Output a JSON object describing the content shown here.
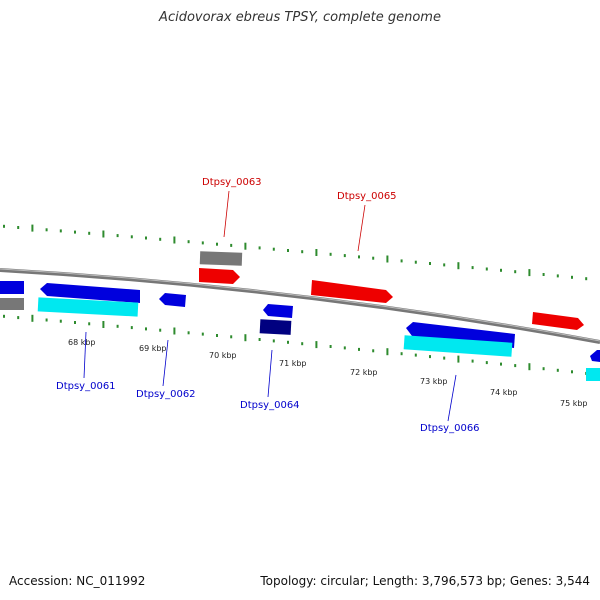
{
  "title": "Acidovorax ebreus TPSY, complete genome",
  "footer": {
    "accession": "Accession: NC_011992",
    "summary": "Topology: circular; Length: 3,796,573 bp; Genes: 3,544"
  },
  "colors": {
    "forward_gene": "#ee0000",
    "reverse_gene": "#0000ee",
    "reverse_cds": "#00e8f0",
    "gray_feature": "#777777",
    "dark_feature": "#000080",
    "backbone": "#888888",
    "ticks": "#2e8b2e",
    "forward_label": "#cc0000",
    "reverse_label": "#0000cc"
  },
  "kbp_labels": [
    "68 kbp",
    "69 kbp",
    "70 kbp",
    "71 kbp",
    "72 kbp",
    "73 kbp",
    "74 kbp",
    "75 kbp"
  ],
  "gene_labels": [
    "Dtpsy_0063",
    "Dtpsy_0065",
    "Dtpsy_0061",
    "Dtpsy_0062",
    "Dtpsy_0064",
    "Dtpsy_0066"
  ]
}
